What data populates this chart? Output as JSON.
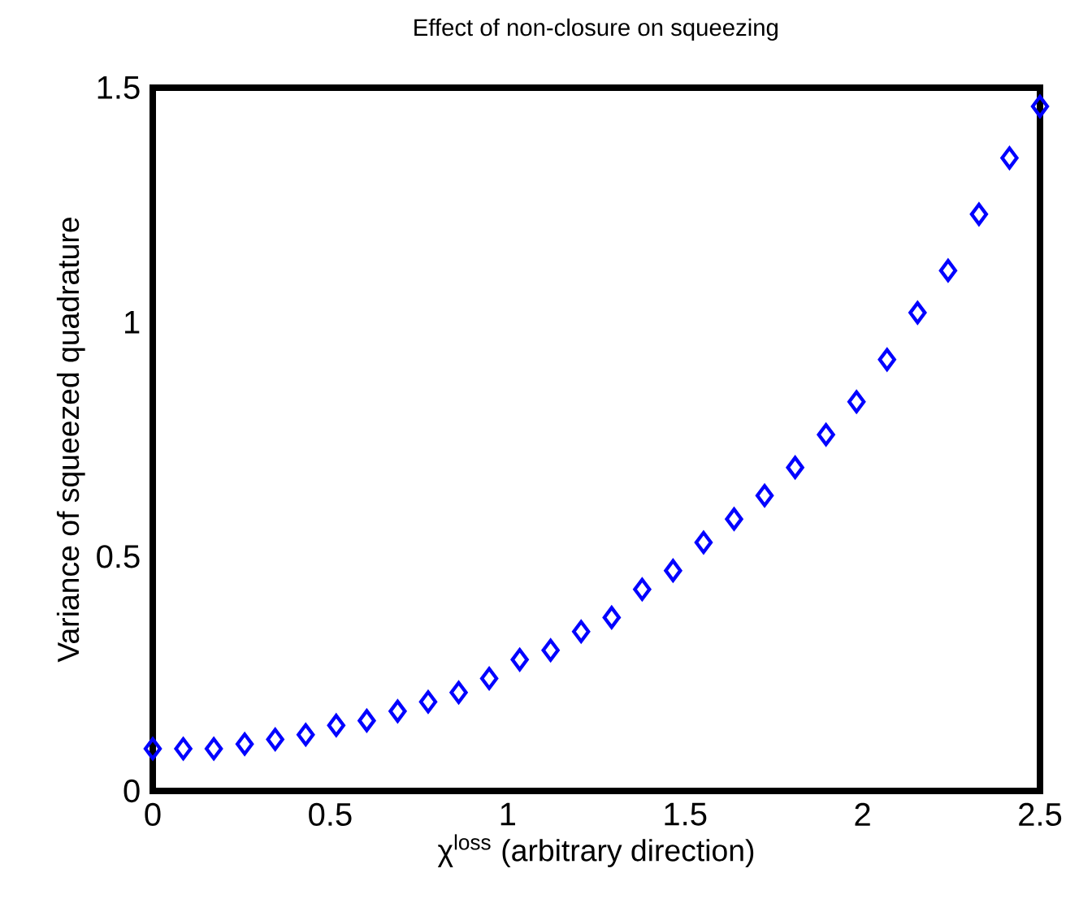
{
  "chart_data": {
    "type": "scatter",
    "title": "Effect of non-closure on squeezing",
    "xlabel": "χ$^{loss}$ (arbitrary direction)",
    "ylabel": "Variance of squeezed quadrature",
    "x": [
      0,
      0.086,
      0.172,
      0.259,
      0.345,
      0.431,
      0.517,
      0.603,
      0.69,
      0.776,
      0.862,
      0.948,
      1.034,
      1.121,
      1.207,
      1.293,
      1.379,
      1.466,
      1.552,
      1.638,
      1.724,
      1.81,
      1.897,
      1.983,
      2.069,
      2.155,
      2.241,
      2.328,
      2.414,
      2.5
    ],
    "values": [
      0.09,
      0.09,
      0.09,
      0.1,
      0.11,
      0.12,
      0.14,
      0.15,
      0.17,
      0.19,
      0.21,
      0.24,
      0.28,
      0.3,
      0.34,
      0.37,
      0.43,
      0.47,
      0.53,
      0.58,
      0.63,
      0.69,
      0.76,
      0.83,
      0.92,
      1.02,
      1.11,
      1.23,
      1.35,
      1.46
    ],
    "color": "#0000ff",
    "marker": "diamond",
    "xlim": [
      0,
      2.5
    ],
    "ylim": [
      0,
      1.5
    ],
    "xticks": [
      0,
      0.5,
      1,
      1.5,
      2,
      2.5
    ],
    "yticks": [
      0,
      0.5,
      1,
      1.5
    ],
    "grid": false
  }
}
